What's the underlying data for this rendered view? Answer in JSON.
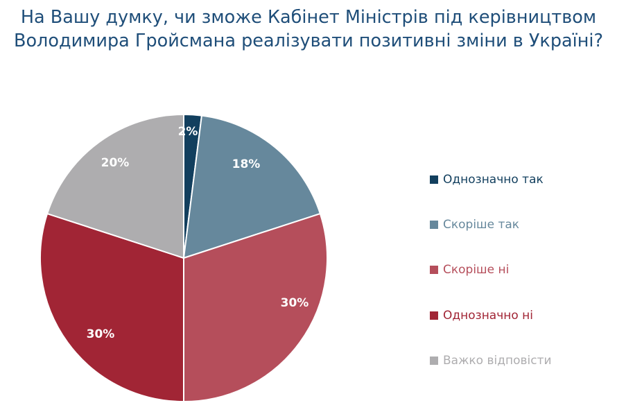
{
  "title": {
    "line1": "На Вашу думку, чи зможе Кабінет Міністрів під керівництвом",
    "line2": "Володимира Гройсмана реалізувати позитивні зміни в Україні?"
  },
  "chart_data": {
    "type": "pie",
    "title": "На Вашу думку, чи зможе Кабінет Міністрів під керівництвом Володимира Гройсмана реалізувати позитивні зміни в Україні?",
    "categories": [
      "Однозначно так",
      "Скоріше так",
      "Скоріше ні",
      "Однозначно ні",
      "Важко відповісти"
    ],
    "values": [
      2,
      18,
      30,
      30,
      20
    ],
    "labels": [
      "2%",
      "18%",
      "30%",
      "30%",
      "20%"
    ],
    "colors": [
      "#123f5e",
      "#66889c",
      "#b54e5b",
      "#a12535",
      "#aeadaf"
    ],
    "legend_position": "right",
    "start_angle": "12 o'clock",
    "direction": "clockwise"
  },
  "colors": {
    "title": "#1f4e79",
    "background": "#ffffff"
  }
}
